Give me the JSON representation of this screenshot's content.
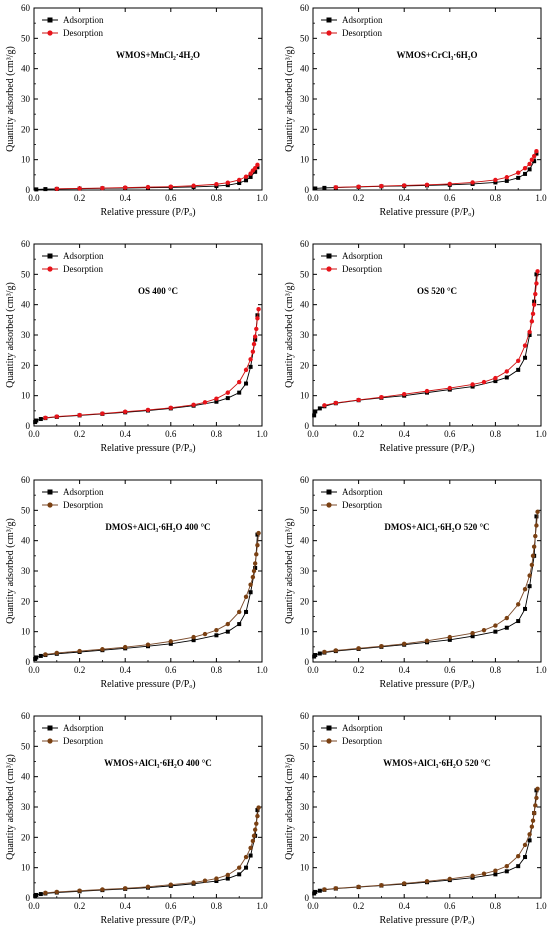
{
  "figure": {
    "colors": {
      "adsorption": "#000000",
      "desorption_red": "#e8131a",
      "desorption_brown": "#7a4012",
      "line_red": "#cc1010",
      "line_brown": "#7a4a2a"
    }
  },
  "chart_data": [
    {
      "type": "line",
      "title": "WMOS+MnCl₂·4H₂O",
      "xlabel": "Relative pressure (P/Pₒ)",
      "ylabel": "Quantity adsorbed (cm³/g)",
      "xlim": [
        0,
        1.0
      ],
      "ylim": [
        0,
        60
      ],
      "xticks": [
        "0.0",
        "0.2",
        "0.4",
        "0.6",
        "0.8",
        "1.0"
      ],
      "yticks": [
        "0",
        "10",
        "20",
        "30",
        "40",
        "50",
        "60"
      ],
      "legend": {
        "placement": "top-left",
        "entries": [
          "Adsorption",
          "Desorption"
        ]
      },
      "desorption_color": "red",
      "series": [
        {
          "name": "Adsorption",
          "x": [
            0.01,
            0.05,
            0.1,
            0.2,
            0.3,
            0.4,
            0.5,
            0.6,
            0.7,
            0.8,
            0.85,
            0.9,
            0.93,
            0.95,
            0.97,
            0.98
          ],
          "y": [
            0.2,
            0.3,
            0.35,
            0.45,
            0.55,
            0.65,
            0.75,
            0.85,
            1.0,
            1.3,
            1.6,
            2.3,
            3.2,
            4.3,
            6.0,
            7.5
          ]
        },
        {
          "name": "Desorption",
          "x": [
            0.98,
            0.97,
            0.96,
            0.95,
            0.93,
            0.9,
            0.85,
            0.8,
            0.7,
            0.6,
            0.5,
            0.4,
            0.3,
            0.2,
            0.1
          ],
          "y": [
            8.3,
            7.2,
            6.4,
            5.4,
            4.4,
            3.3,
            2.4,
            1.9,
            1.4,
            1.1,
            0.95,
            0.8,
            0.65,
            0.5,
            0.4
          ]
        }
      ]
    },
    {
      "type": "line",
      "title": "WMOS+CrCl₃·6H₂O",
      "xlabel": "Relative pressure (P/Pₒ)",
      "ylabel": "Quantity adsorbed (cm³/g)",
      "xlim": [
        0,
        1.0
      ],
      "ylim": [
        0,
        60
      ],
      "xticks": [
        "0.0",
        "0.2",
        "0.4",
        "0.6",
        "0.8",
        "1.0"
      ],
      "yticks": [
        "0",
        "10",
        "20",
        "30",
        "40",
        "50",
        "60"
      ],
      "legend": {
        "placement": "top-left",
        "entries": [
          "Adsorption",
          "Desorption"
        ]
      },
      "desorption_color": "red",
      "series": [
        {
          "name": "Adsorption",
          "x": [
            0.01,
            0.05,
            0.1,
            0.2,
            0.3,
            0.4,
            0.5,
            0.6,
            0.7,
            0.8,
            0.85,
            0.9,
            0.93,
            0.95,
            0.97,
            0.98
          ],
          "y": [
            0.5,
            0.7,
            0.8,
            1.0,
            1.2,
            1.35,
            1.5,
            1.7,
            2.0,
            2.5,
            3.0,
            4.0,
            5.3,
            6.8,
            9.5,
            12.0
          ]
        },
        {
          "name": "Desorption",
          "x": [
            0.98,
            0.97,
            0.96,
            0.95,
            0.93,
            0.9,
            0.85,
            0.8,
            0.7,
            0.6,
            0.5,
            0.4,
            0.3,
            0.2,
            0.1
          ],
          "y": [
            12.8,
            11.2,
            10.0,
            8.6,
            7.2,
            5.7,
            4.2,
            3.3,
            2.5,
            2.0,
            1.7,
            1.5,
            1.3,
            1.1,
            0.9
          ]
        }
      ]
    },
    {
      "type": "line",
      "title": "OS 400 °C",
      "xlabel": "Relative pressure (P/Pₒ)",
      "ylabel": "Quantity adsorbed (cm³/g)",
      "xlim": [
        0,
        1.0
      ],
      "ylim": [
        0,
        60
      ],
      "xticks": [
        "0.0",
        "0.2",
        "0.4",
        "0.6",
        "0.8",
        "1.0"
      ],
      "yticks": [
        "0",
        "10",
        "20",
        "30",
        "40",
        "50",
        "60"
      ],
      "legend": {
        "placement": "top-left",
        "entries": [
          "Adsorption",
          "Desorption"
        ]
      },
      "desorption_color": "red",
      "series": [
        {
          "name": "Adsorption",
          "x": [
            0.005,
            0.01,
            0.03,
            0.05,
            0.1,
            0.2,
            0.3,
            0.4,
            0.5,
            0.6,
            0.7,
            0.8,
            0.85,
            0.9,
            0.93,
            0.95,
            0.97,
            0.98
          ],
          "y": [
            1.3,
            1.8,
            2.3,
            2.6,
            3.0,
            3.5,
            4.0,
            4.5,
            5.1,
            5.8,
            6.7,
            8.0,
            9.2,
            11.0,
            14.0,
            19.5,
            28.5,
            36.5
          ]
        },
        {
          "name": "Desorption",
          "x": [
            0.985,
            0.98,
            0.975,
            0.97,
            0.965,
            0.96,
            0.95,
            0.93,
            0.9,
            0.85,
            0.8,
            0.75,
            0.7,
            0.6,
            0.5,
            0.4,
            0.3,
            0.2,
            0.1,
            0.05
          ],
          "y": [
            38.5,
            35.5,
            32.0,
            29.5,
            27.0,
            24.5,
            22.0,
            18.5,
            14.5,
            11.0,
            9.0,
            7.8,
            7.0,
            6.0,
            5.3,
            4.7,
            4.1,
            3.6,
            3.1,
            2.7
          ]
        }
      ]
    },
    {
      "type": "line",
      "title": "OS 520 °C",
      "xlabel": "Relative pressure (P/Pₒ)",
      "ylabel": "Quantity adsorbed (cm³/g)",
      "xlim": [
        0,
        1.0
      ],
      "ylim": [
        0,
        60
      ],
      "xticks": [
        "0.0",
        "0.2",
        "0.4",
        "0.6",
        "0.8",
        "1.0"
      ],
      "yticks": [
        "0",
        "10",
        "20",
        "30",
        "40",
        "50",
        "60"
      ],
      "legend": {
        "placement": "top-left",
        "entries": [
          "Adsorption",
          "Desorption"
        ]
      },
      "desorption_color": "red",
      "series": [
        {
          "name": "Adsorption",
          "x": [
            0.005,
            0.01,
            0.03,
            0.05,
            0.1,
            0.2,
            0.3,
            0.4,
            0.5,
            0.6,
            0.7,
            0.8,
            0.85,
            0.9,
            0.93,
            0.95,
            0.97,
            0.98
          ],
          "y": [
            3.5,
            4.8,
            5.8,
            6.5,
            7.5,
            8.5,
            9.3,
            10.0,
            11.0,
            12.0,
            13.0,
            14.8,
            16.0,
            18.5,
            22.5,
            30.0,
            41.0,
            50.0
          ]
        },
        {
          "name": "Desorption",
          "x": [
            0.985,
            0.98,
            0.975,
            0.97,
            0.965,
            0.96,
            0.95,
            0.93,
            0.9,
            0.85,
            0.8,
            0.75,
            0.7,
            0.6,
            0.5,
            0.4,
            0.3,
            0.2,
            0.1,
            0.05
          ],
          "y": [
            51.0,
            47.0,
            43.5,
            40.0,
            37.0,
            34.5,
            31.0,
            26.5,
            21.5,
            18.0,
            15.8,
            14.5,
            13.7,
            12.5,
            11.5,
            10.5,
            9.5,
            8.6,
            7.6,
            6.8
          ]
        }
      ]
    },
    {
      "type": "line",
      "title": "DMOS+AlCl₃·6H₂O 400 °C",
      "xlabel": "Relative pressure (P/Pₒ)",
      "ylabel": "Quantity adsorbed (cm³/g)",
      "xlim": [
        0,
        1.0
      ],
      "ylim": [
        0,
        60
      ],
      "xticks": [
        "0.0",
        "0.2",
        "0.4",
        "0.6",
        "0.8",
        "1.0"
      ],
      "yticks": [
        "0",
        "10",
        "20",
        "30",
        "40",
        "50",
        "60"
      ],
      "legend": {
        "placement": "top-left",
        "entries": [
          "Adsorption",
          "Desorption"
        ]
      },
      "desorption_color": "brown",
      "series": [
        {
          "name": "Adsorption",
          "x": [
            0.005,
            0.01,
            0.03,
            0.05,
            0.1,
            0.2,
            0.3,
            0.4,
            0.5,
            0.6,
            0.7,
            0.8,
            0.85,
            0.9,
            0.93,
            0.95,
            0.97,
            0.98
          ],
          "y": [
            1.0,
            1.5,
            2.0,
            2.3,
            2.7,
            3.3,
            3.9,
            4.5,
            5.2,
            6.0,
            7.2,
            8.8,
            10.0,
            12.5,
            16.5,
            23.0,
            31.0,
            42.0
          ]
        },
        {
          "name": "Desorption",
          "x": [
            0.985,
            0.98,
            0.975,
            0.97,
            0.965,
            0.96,
            0.95,
            0.93,
            0.9,
            0.85,
            0.8,
            0.75,
            0.7,
            0.6,
            0.5,
            0.4,
            0.3,
            0.2,
            0.1,
            0.05
          ],
          "y": [
            42.5,
            38.5,
            35.5,
            32.5,
            30.0,
            28.0,
            25.5,
            21.5,
            16.5,
            12.5,
            10.5,
            9.2,
            8.2,
            6.8,
            5.7,
            4.9,
            4.2,
            3.6,
            3.0,
            2.5
          ]
        }
      ]
    },
    {
      "type": "line",
      "title": "DMOS+AlCl₃·6H₂O 520 °C",
      "xlabel": "Relative pressure (P/Pₒ)",
      "ylabel": "Quantity adsorbed (cm³/g)",
      "xlim": [
        0,
        1.0
      ],
      "ylim": [
        0,
        60
      ],
      "xticks": [
        "0.0",
        "0.2",
        "0.4",
        "0.6",
        "0.8",
        "1.0"
      ],
      "yticks": [
        "0",
        "10",
        "20",
        "30",
        "40",
        "50",
        "60"
      ],
      "legend": {
        "placement": "top-left",
        "entries": [
          "Adsorption",
          "Desorption"
        ]
      },
      "desorption_color": "brown",
      "series": [
        {
          "name": "Adsorption",
          "x": [
            0.005,
            0.01,
            0.03,
            0.05,
            0.1,
            0.2,
            0.3,
            0.4,
            0.5,
            0.6,
            0.7,
            0.8,
            0.85,
            0.9,
            0.93,
            0.95,
            0.97,
            0.98
          ],
          "y": [
            1.8,
            2.3,
            2.8,
            3.1,
            3.6,
            4.3,
            5.0,
            5.7,
            6.5,
            7.3,
            8.5,
            10.0,
            11.3,
            13.5,
            17.5,
            25.0,
            35.0,
            48.0
          ]
        },
        {
          "name": "Desorption",
          "x": [
            0.985,
            0.98,
            0.975,
            0.97,
            0.965,
            0.96,
            0.95,
            0.93,
            0.9,
            0.85,
            0.8,
            0.75,
            0.7,
            0.6,
            0.5,
            0.4,
            0.3,
            0.2,
            0.1,
            0.05
          ],
          "y": [
            49.5,
            45.0,
            41.5,
            38.0,
            35.0,
            32.0,
            28.5,
            24.0,
            19.0,
            14.5,
            12.0,
            10.5,
            9.5,
            8.2,
            7.0,
            6.0,
            5.2,
            4.5,
            3.8,
            3.3
          ]
        }
      ]
    },
    {
      "type": "line",
      "title": "WMOS+AlCl₃·6H₂O 400 °C",
      "xlabel": "Relative pressure (P/Pₒ)",
      "ylabel": "Quantity adsorbed (cm³/g)",
      "xlim": [
        0,
        1.0
      ],
      "ylim": [
        0,
        60
      ],
      "xticks": [
        "0.0",
        "0.2",
        "0.4",
        "0.6",
        "0.8",
        "1.0"
      ],
      "yticks": [
        "0",
        "10",
        "20",
        "30",
        "40",
        "50",
        "60"
      ],
      "legend": {
        "placement": "top-left",
        "entries": [
          "Adsorption",
          "Desorption"
        ]
      },
      "desorption_color": "brown",
      "series": [
        {
          "name": "Adsorption",
          "x": [
            0.005,
            0.01,
            0.03,
            0.05,
            0.1,
            0.2,
            0.3,
            0.4,
            0.5,
            0.6,
            0.7,
            0.8,
            0.85,
            0.9,
            0.93,
            0.95,
            0.97,
            0.98
          ],
          "y": [
            0.7,
            1.0,
            1.3,
            1.5,
            1.8,
            2.2,
            2.6,
            3.0,
            3.4,
            4.0,
            4.7,
            5.6,
            6.4,
            7.8,
            10.0,
            14.0,
            20.5,
            29.0
          ]
        },
        {
          "name": "Desorption",
          "x": [
            0.985,
            0.98,
            0.975,
            0.97,
            0.965,
            0.96,
            0.95,
            0.93,
            0.9,
            0.85,
            0.8,
            0.75,
            0.7,
            0.6,
            0.5,
            0.4,
            0.3,
            0.2,
            0.1,
            0.05
          ],
          "y": [
            29.8,
            27.0,
            24.5,
            22.5,
            20.5,
            18.8,
            16.5,
            13.5,
            10.0,
            7.6,
            6.4,
            5.7,
            5.1,
            4.4,
            3.7,
            3.2,
            2.8,
            2.4,
            2.0,
            1.7
          ]
        }
      ]
    },
    {
      "type": "line",
      "title": "WMOS+AlCl₃·6H₂O 520 °C",
      "xlabel": "Relative pressure (P/Pₒ)",
      "ylabel": "Quantity adsorbed (cm³/g)",
      "xlim": [
        0,
        1.0
      ],
      "ylim": [
        0,
        60
      ],
      "xticks": [
        "0.0",
        "0.2",
        "0.4",
        "0.6",
        "0.8",
        "1.0"
      ],
      "yticks": [
        "0",
        "10",
        "20",
        "30",
        "40",
        "50",
        "60"
      ],
      "legend": {
        "placement": "top-left",
        "entries": [
          "Adsorption",
          "Desorption"
        ]
      },
      "desorption_color": "brown",
      "series": [
        {
          "name": "Adsorption",
          "x": [
            0.005,
            0.01,
            0.03,
            0.05,
            0.1,
            0.2,
            0.3,
            0.4,
            0.5,
            0.6,
            0.7,
            0.8,
            0.85,
            0.9,
            0.93,
            0.95,
            0.97,
            0.98
          ],
          "y": [
            1.5,
            2.0,
            2.4,
            2.7,
            3.1,
            3.6,
            4.1,
            4.6,
            5.2,
            5.9,
            6.7,
            7.8,
            8.8,
            10.5,
            13.5,
            19.0,
            28.0,
            35.5
          ]
        },
        {
          "name": "Desorption",
          "x": [
            0.985,
            0.98,
            0.975,
            0.97,
            0.965,
            0.96,
            0.95,
            0.93,
            0.9,
            0.85,
            0.8,
            0.75,
            0.7,
            0.6,
            0.5,
            0.4,
            0.3,
            0.2,
            0.1,
            0.05
          ],
          "y": [
            36.0,
            33.0,
            30.5,
            28.0,
            25.5,
            23.5,
            21.0,
            17.5,
            13.8,
            10.5,
            9.0,
            8.0,
            7.3,
            6.3,
            5.5,
            4.8,
            4.2,
            3.7,
            3.2,
            2.8
          ]
        }
      ]
    }
  ]
}
